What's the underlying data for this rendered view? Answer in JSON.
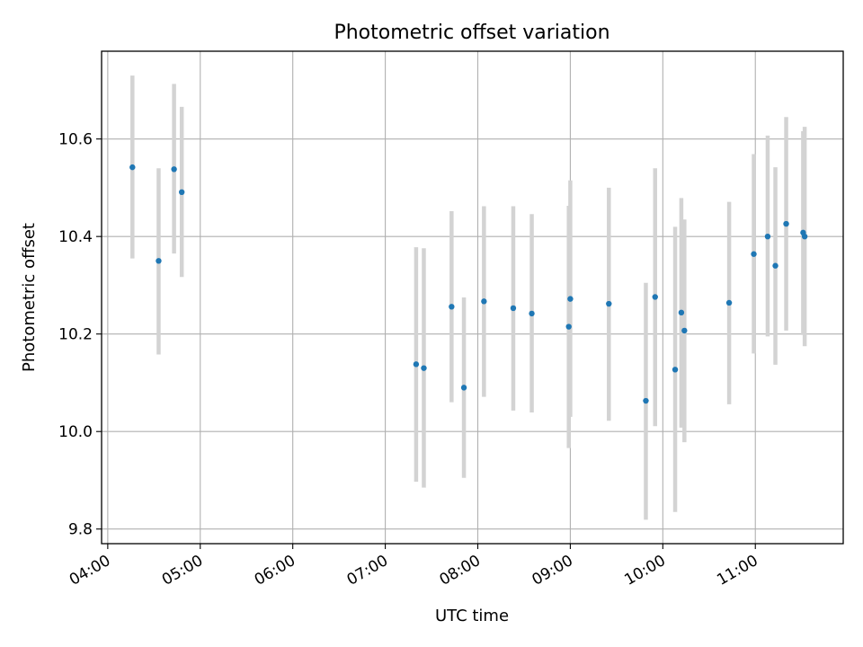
{
  "chart_data": {
    "type": "scatter",
    "title": "Photometric offset variation",
    "xlabel": "UTC time",
    "ylabel": "Photometric offset",
    "x_tick_labels": [
      "04:00",
      "05:00",
      "06:00",
      "07:00",
      "08:00",
      "09:00",
      "10:00",
      "11:00"
    ],
    "y_tick_labels": [
      "9.8",
      "10.0",
      "10.2",
      "10.4",
      "10.6"
    ],
    "xlim": [
      "03:56",
      "11:57"
    ],
    "ylim": [
      9.77,
      10.78
    ],
    "grid": true,
    "colors": {
      "points": "#1f77b4",
      "errorbars": "#d3d3d3",
      "grid": "#b0b0b0"
    },
    "points": [
      {
        "x": "04:16",
        "y": 10.542,
        "yerr_low": 10.355,
        "yerr_high": 10.73
      },
      {
        "x": "04:33",
        "y": 10.35,
        "yerr_low": 10.158,
        "yerr_high": 10.54
      },
      {
        "x": "04:43",
        "y": 10.538,
        "yerr_low": 10.365,
        "yerr_high": 10.713
      },
      {
        "x": "04:48",
        "y": 10.491,
        "yerr_low": 10.317,
        "yerr_high": 10.666
      },
      {
        "x": "07:20",
        "y": 10.138,
        "yerr_low": 9.897,
        "yerr_high": 10.378
      },
      {
        "x": "07:25",
        "y": 10.13,
        "yerr_low": 9.885,
        "yerr_high": 10.376
      },
      {
        "x": "07:43",
        "y": 10.256,
        "yerr_low": 10.06,
        "yerr_high": 10.452
      },
      {
        "x": "07:51",
        "y": 10.09,
        "yerr_low": 9.905,
        "yerr_high": 10.275
      },
      {
        "x": "08:04",
        "y": 10.267,
        "yerr_low": 10.071,
        "yerr_high": 10.462
      },
      {
        "x": "08:23",
        "y": 10.253,
        "yerr_low": 10.043,
        "yerr_high": 10.462
      },
      {
        "x": "08:35",
        "y": 10.242,
        "yerr_low": 10.039,
        "yerr_high": 10.446
      },
      {
        "x": "08:59",
        "y": 10.215,
        "yerr_low": 9.966,
        "yerr_high": 10.463
      },
      {
        "x": "09:00",
        "y": 10.272,
        "yerr_low": 10.03,
        "yerr_high": 10.515
      },
      {
        "x": "09:25",
        "y": 10.262,
        "yerr_low": 10.022,
        "yerr_high": 10.5
      },
      {
        "x": "09:49",
        "y": 10.063,
        "yerr_low": 9.819,
        "yerr_high": 10.305
      },
      {
        "x": "09:55",
        "y": 10.276,
        "yerr_low": 10.011,
        "yerr_high": 10.54
      },
      {
        "x": "10:08",
        "y": 10.127,
        "yerr_low": 9.835,
        "yerr_high": 10.42
      },
      {
        "x": "10:12",
        "y": 10.244,
        "yerr_low": 10.008,
        "yerr_high": 10.479
      },
      {
        "x": "10:14",
        "y": 10.207,
        "yerr_low": 9.978,
        "yerr_high": 10.435
      },
      {
        "x": "10:43",
        "y": 10.264,
        "yerr_low": 10.056,
        "yerr_high": 10.471
      },
      {
        "x": "10:59",
        "y": 10.364,
        "yerr_low": 10.16,
        "yerr_high": 10.569
      },
      {
        "x": "11:08",
        "y": 10.4,
        "yerr_low": 10.195,
        "yerr_high": 10.607
      },
      {
        "x": "11:13",
        "y": 10.34,
        "yerr_low": 10.137,
        "yerr_high": 10.542
      },
      {
        "x": "11:20",
        "y": 10.426,
        "yerr_low": 10.207,
        "yerr_high": 10.645
      },
      {
        "x": "11:31",
        "y": 10.408,
        "yerr_low": 10.198,
        "yerr_high": 10.616
      },
      {
        "x": "11:32",
        "y": 10.4,
        "yerr_low": 10.175,
        "yerr_high": 10.625
      }
    ]
  }
}
